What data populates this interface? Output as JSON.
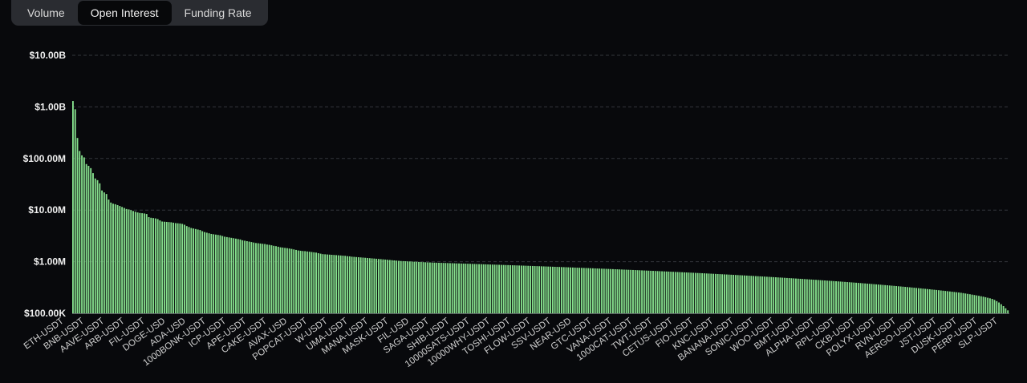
{
  "tabs": [
    {
      "label": "Volume",
      "active": false
    },
    {
      "label": "Open Interest",
      "active": true
    },
    {
      "label": "Funding Rate",
      "active": false
    }
  ],
  "colors": {
    "bar": "#86e08d",
    "grid": "#33363c",
    "background": "#08090c"
  },
  "chart_data": {
    "type": "bar",
    "scale": "log",
    "ylim": [
      100000,
      10000000000
    ],
    "yticks": [
      {
        "value": 10000000000,
        "label": "$10.00B"
      },
      {
        "value": 1000000000,
        "label": "$1.00B"
      },
      {
        "value": 100000000,
        "label": "$100.00M"
      },
      {
        "value": 10000000,
        "label": "$10.00M"
      },
      {
        "value": 1000000,
        "label": "$1.00M"
      },
      {
        "value": 100000,
        "label": "$100.00K"
      }
    ],
    "grid": true,
    "xlabels": [
      "ETH-USDT",
      "BNB-USDT",
      "AAVE-USDT",
      "ARB-USDT",
      "FIL-USDT",
      "DOGE-USD",
      "ADA-USD",
      "1000BONK-USDT",
      "ICP-USDT",
      "APE-USDT",
      "CAKE-USDT",
      "AVAX-USD",
      "POPCAT-USDT",
      "W-USDT",
      "UMA-USDT",
      "MANA-USDT",
      "MASK-USDT",
      "FIL-USD",
      "SAGA-USDT",
      "SHIB-USDT",
      "10000SATS-USDT",
      "10000WHY-USDT",
      "TOSHI-USDT",
      "FLOW-USDT",
      "SSV-USDT",
      "NEAR-USD",
      "GTC-USDT",
      "VANA-USDT",
      "1000CAT-USDT",
      "TWT-USDT",
      "CETUS-USDT",
      "FIO-USDT",
      "KNC-USDT",
      "BANANA-USDT",
      "SONIC-USDT",
      "WOO-USDT",
      "BMT-USDT",
      "ALPHA-USDT",
      "RPL-USDT",
      "CKB-USDT",
      "POLYX-USDT",
      "RVN-USDT",
      "AERGO-USDT",
      "JST-USDT",
      "DUSK-USDT",
      "PERP-USDT",
      "SLP-USDT"
    ],
    "values": [
      1300000000,
      900000000,
      250000000,
      140000000,
      115000000,
      105000000,
      78000000,
      72000000,
      65000000,
      52000000,
      41000000,
      38000000,
      33000000,
      24000000,
      22000000,
      20500000,
      16000000,
      14000000,
      13300000,
      13000000,
      12500000,
      12000000,
      11500000,
      11000000,
      10500000,
      10300000,
      10000000,
      9600000,
      9300000,
      9000000,
      8800000,
      8700000,
      8600000,
      8400000,
      7300000,
      7100000,
      7000000,
      6900000,
      6700000,
      6300000,
      6000000,
      5950000,
      5900000,
      5850000,
      5800000,
      5700000,
      5600000,
      5550000,
      5500000,
      5400000,
      5200000,
      4900000,
      4700000,
      4500000,
      4400000,
      4300000,
      4200000,
      4100000,
      3900000,
      3750000,
      3650000,
      3550000,
      3450000,
      3400000,
      3350000,
      3300000,
      3250000,
      3150000,
      3050000,
      3000000,
      2950000,
      2900000,
      2850000,
      2800000,
      2750000,
      2700000,
      2600000,
      2550000,
      2500000,
      2450000,
      2400000,
      2350000,
      2300000,
      2280000,
      2250000,
      2220000,
      2200000,
      2150000,
      2120000,
      2080000,
      2030000,
      2000000,
      1950000,
      1900000,
      1880000,
      1850000,
      1830000,
      1800000,
      1770000,
      1730000,
      1690000,
      1650000,
      1630000,
      1610000,
      1600000,
      1580000,
      1560000,
      1540000,
      1520000,
      1500000,
      1460000,
      1430000,
      1400000,
      1390000,
      1380000,
      1370000,
      1360000,
      1350000,
      1340000,
      1330000,
      1320000,
      1310000,
      1300000,
      1280000,
      1270000,
      1250000,
      1240000,
      1230000,
      1220000,
      1210000,
      1200000,
      1190000,
      1180000,
      1170000,
      1160000,
      1150000,
      1140000,
      1130000,
      1120000,
      1110000,
      1100000,
      1090000,
      1080000,
      1070000,
      1060000,
      1050000,
      1040000,
      1030000,
      1025000,
      1020000,
      1015000,
      1010000,
      1005000,
      1000000,
      995000,
      990000,
      985000,
      980000,
      975000,
      970000,
      966000,
      962000,
      958000,
      955000,
      952000,
      949000,
      946000,
      943000,
      940000,
      937000,
      934000,
      931000,
      928000,
      925000,
      922000,
      919000,
      916000,
      913000,
      910000,
      907000,
      904000,
      901000,
      898000,
      895000,
      892000,
      889000,
      886000,
      883000,
      880000,
      877000,
      874000,
      871000,
      868000,
      865000,
      862000,
      859000,
      856000,
      853000,
      850000,
      847000,
      844000,
      841000,
      838000,
      835000,
      832000,
      829000,
      826000,
      823000,
      820000,
      817000,
      814000,
      811000,
      808000,
      805000,
      802000,
      799000,
      796000,
      793000,
      790000,
      787000,
      784000,
      781000,
      778000,
      775000,
      772000,
      769000,
      766000,
      763000,
      760000,
      757000,
      754000,
      751000,
      748000,
      745000,
      742000,
      739000,
      736000,
      733000,
      730000,
      727000,
      724000,
      721000,
      718000,
      715000,
      712000,
      709000,
      706000,
      703000,
      700000,
      697000,
      694000,
      691000,
      688000,
      685000,
      682000,
      679000,
      676000,
      673000,
      670000,
      667000,
      664000,
      661000,
      658000,
      655000,
      652000,
      649000,
      646000,
      643000,
      640000,
      637000,
      634000,
      631000,
      628000,
      625000,
      622000,
      619000,
      616000,
      613000,
      610000,
      607000,
      604000,
      601000,
      598000,
      595000,
      592000,
      589000,
      586000,
      583000,
      580000,
      577000,
      574000,
      571000,
      568000,
      565000,
      562000,
      559000,
      556000,
      553000,
      550000,
      547000,
      544000,
      541000,
      538000,
      535000,
      532000,
      529000,
      526000,
      523000,
      520000,
      517000,
      514000,
      511000,
      508000,
      505000,
      502000,
      499000,
      496000,
      493000,
      490000,
      487000,
      484000,
      481000,
      478000,
      475000,
      472000,
      469000,
      466000,
      463000,
      460000,
      457000,
      454000,
      451000,
      448000,
      445000,
      442000,
      439000,
      436000,
      433000,
      430000,
      427000,
      424000,
      421000,
      418000,
      415000,
      412000,
      409000,
      406000,
      403000,
      400000,
      397000,
      394000,
      391000,
      388000,
      385000,
      382000,
      379000,
      376000,
      373000,
      370000,
      367000,
      364000,
      361000,
      358000,
      355000,
      352000,
      349000,
      346000,
      343000,
      340000,
      337000,
      334000,
      331000,
      328000,
      325000,
      322000,
      319000,
      316000,
      313000,
      310000,
      307000,
      304000,
      301000,
      298000,
      295000,
      292000,
      289000,
      286000,
      283000,
      280000,
      277000,
      274000,
      271000,
      268000,
      265000,
      262000,
      259000,
      256000,
      253000,
      250000,
      246000,
      242000,
      238000,
      234000,
      230000,
      226000,
      222000,
      218000,
      214000,
      210000,
      205000,
      200000,
      195000,
      190000,
      182000,
      172000,
      162000,
      150000,
      138000,
      125000,
      114000
    ]
  }
}
